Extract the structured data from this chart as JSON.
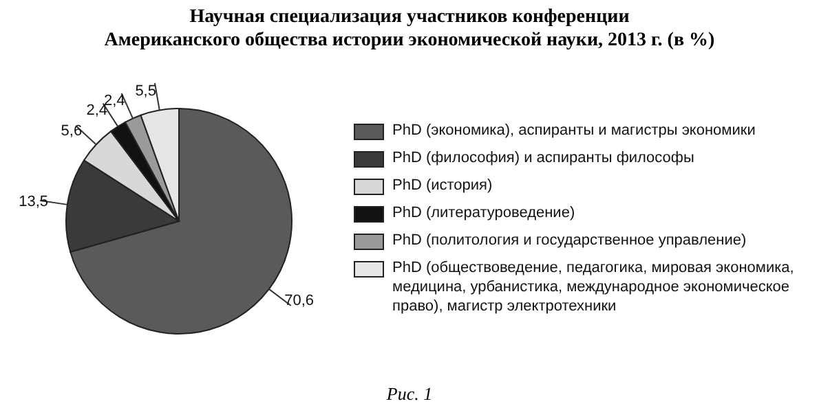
{
  "chart_data": {
    "type": "pie",
    "title": "Научная специализация участников конференции\nАмериканского общества истории экономической науки, 2013 г. (в %)",
    "categories": [
      "PhD (экономика), аспиранты и  магистры экономики",
      "PhD (философия) и  аспиранты философы",
      "PhD (история)",
      "PhD (литературоведение)",
      "PhD (политология и  государственное управление)",
      "PhD (обществоведение, педагогика, мировая экономика, медицина, урбанистика, международное экономическое право), магистр электротехники"
    ],
    "values": [
      70.6,
      13.5,
      5.6,
      2.4,
      2.4,
      5.5
    ],
    "value_labels": [
      "70,6",
      "13,5",
      "5,6",
      "2,4",
      "2,4",
      "5,5"
    ],
    "colors": [
      "#5a5a5a",
      "#3a3a3a",
      "#d8d8d8",
      "#111111",
      "#9a9a9a",
      "#e6e6e6"
    ],
    "legend": "right",
    "annotations": [
      "Рис. 1"
    ]
  }
}
